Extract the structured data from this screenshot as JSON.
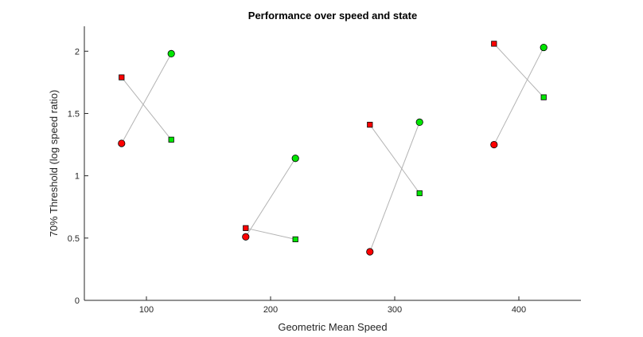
{
  "chart_data": {
    "type": "scatter",
    "title": "Performance over speed and state",
    "xlabel": "Geometric Mean Speed",
    "ylabel": "70% Threshold (log speed ratio)",
    "xlim": [
      50,
      450
    ],
    "ylim": [
      0,
      2.2
    ],
    "xticks": [
      100,
      200,
      300,
      400
    ],
    "yticks": [
      0,
      0.5,
      1,
      1.5,
      2
    ],
    "xtick_labels": [
      "100",
      "200",
      "300",
      "400"
    ],
    "ytick_labels": [
      "0",
      "0.5",
      "1",
      "1.5",
      "2"
    ],
    "grid": false,
    "box": "left-bottom",
    "series": [
      {
        "marker": "square",
        "color": "#ff0000",
        "points": [
          [
            80,
            1.79
          ],
          [
            180,
            0.58
          ],
          [
            280,
            1.41
          ],
          [
            380,
            2.06
          ]
        ]
      },
      {
        "marker": "square",
        "color": "#00e600",
        "points": [
          [
            120,
            1.29
          ],
          [
            220,
            0.49
          ],
          [
            320,
            0.86
          ],
          [
            420,
            1.63
          ]
        ]
      },
      {
        "marker": "circle",
        "color": "#ff0000",
        "points": [
          [
            80,
            1.26
          ],
          [
            180,
            0.51
          ],
          [
            280,
            0.39
          ],
          [
            380,
            1.25
          ]
        ]
      },
      {
        "marker": "circle",
        "color": "#00e600",
        "points": [
          [
            120,
            1.98
          ],
          [
            220,
            1.14
          ],
          [
            320,
            1.43
          ],
          [
            420,
            2.03
          ]
        ]
      }
    ],
    "connectors": [
      {
        "color": "#b3b3b3",
        "segments": [
          [
            [
              80,
              1.79
            ],
            [
              120,
              1.29
            ]
          ],
          [
            [
              80,
              1.26
            ],
            [
              120,
              1.98
            ]
          ],
          [
            [
              180,
              0.58
            ],
            [
              220,
              0.49
            ]
          ],
          [
            [
              180,
              0.51
            ],
            [
              220,
              1.14
            ]
          ],
          [
            [
              280,
              1.41
            ],
            [
              320,
              0.86
            ]
          ],
          [
            [
              280,
              0.39
            ],
            [
              320,
              1.43
            ]
          ],
          [
            [
              380,
              2.06
            ],
            [
              420,
              1.63
            ]
          ],
          [
            [
              380,
              1.25
            ],
            [
              420,
              2.03
            ]
          ]
        ]
      }
    ]
  }
}
